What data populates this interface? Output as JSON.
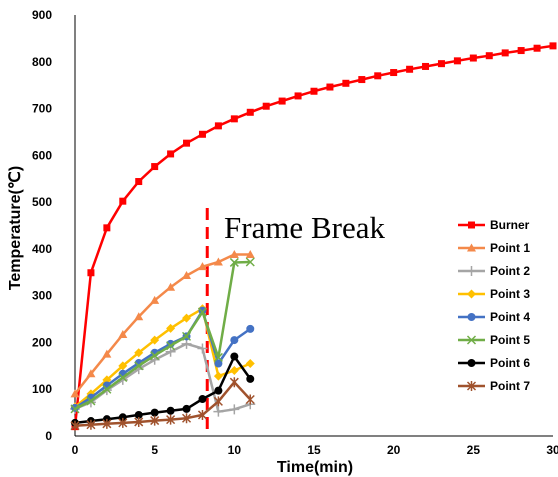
{
  "chart_data": {
    "type": "line",
    "xlabel": "Time(min)",
    "ylabel": "Temperature(℃)",
    "xlim": [
      0,
      30
    ],
    "ylim": [
      0,
      900
    ],
    "xticks": [
      0,
      5,
      10,
      15,
      20,
      25,
      30
    ],
    "yticks": [
      0,
      100,
      200,
      300,
      400,
      500,
      600,
      700,
      800,
      900
    ],
    "grid": false,
    "legend_position": "right",
    "annotation": {
      "text": "Frame Break",
      "x": 8.3
    },
    "series": [
      {
        "name": "Burner",
        "color": "#ff0000",
        "marker": "square",
        "x": [
          0,
          1,
          2,
          3,
          4,
          5,
          6,
          7,
          8,
          9,
          10,
          11,
          12,
          13,
          14,
          15,
          16,
          17,
          18,
          19,
          20,
          21,
          22,
          23,
          24,
          25,
          26,
          27,
          28,
          29,
          30
        ],
        "y": [
          20,
          349,
          445,
          502,
          544,
          576,
          603,
          626,
          645,
          663,
          678,
          692,
          705,
          716,
          727,
          737,
          746,
          754,
          762,
          770,
          777,
          784,
          790,
          796,
          802,
          808,
          813,
          819,
          824,
          829,
          834
        ]
      },
      {
        "name": "Point 1",
        "color": "#f4894a",
        "marker": "triangle",
        "x": [
          0,
          1,
          2,
          3,
          4,
          5,
          6,
          7,
          8,
          9,
          10,
          11
        ],
        "y": [
          90,
          133,
          175,
          217,
          255,
          290,
          318,
          343,
          362,
          372,
          388,
          388
        ]
      },
      {
        "name": "Point 2",
        "color": "#a5a5a5",
        "marker": "plus",
        "x": [
          0,
          1,
          2,
          3,
          4,
          5,
          6,
          7,
          8,
          9,
          10,
          11
        ],
        "y": [
          58,
          72,
          98,
          120,
          143,
          163,
          180,
          197,
          187,
          52,
          57,
          68
        ]
      },
      {
        "name": "Point 3",
        "color": "#ffc000",
        "marker": "diamond",
        "x": [
          0,
          1,
          2,
          3,
          4,
          5,
          6,
          7,
          8,
          9,
          10,
          11
        ],
        "y": [
          62,
          90,
          120,
          150,
          178,
          205,
          230,
          252,
          272,
          128,
          140,
          155
        ]
      },
      {
        "name": "Point 4",
        "color": "#4472c4",
        "marker": "circle",
        "x": [
          0,
          1,
          2,
          3,
          4,
          5,
          6,
          7,
          8,
          9,
          10,
          11
        ],
        "y": [
          60,
          82,
          108,
          133,
          156,
          178,
          197,
          213,
          268,
          155,
          205,
          229
        ]
      },
      {
        "name": "Point 5",
        "color": "#70ad47",
        "marker": "x",
        "x": [
          0,
          1,
          2,
          3,
          4,
          5,
          6,
          7,
          8,
          9,
          10,
          11
        ],
        "y": [
          58,
          75,
          100,
          125,
          150,
          172,
          193,
          213,
          265,
          168,
          371,
          372
        ]
      },
      {
        "name": "Point 6",
        "color": "#000000",
        "marker": "circle",
        "x": [
          0,
          1,
          2,
          3,
          4,
          5,
          6,
          7,
          8,
          9,
          10,
          11
        ],
        "y": [
          28,
          32,
          36,
          40,
          45,
          50,
          54,
          58,
          79,
          97,
          170,
          122
        ]
      },
      {
        "name": "Point 7",
        "color": "#a0522d",
        "marker": "star",
        "x": [
          0,
          1,
          2,
          3,
          4,
          5,
          6,
          7,
          8,
          9,
          10,
          11
        ],
        "y": [
          22,
          24,
          26,
          28,
          30,
          33,
          35,
          38,
          45,
          74,
          115,
          78
        ]
      }
    ]
  }
}
